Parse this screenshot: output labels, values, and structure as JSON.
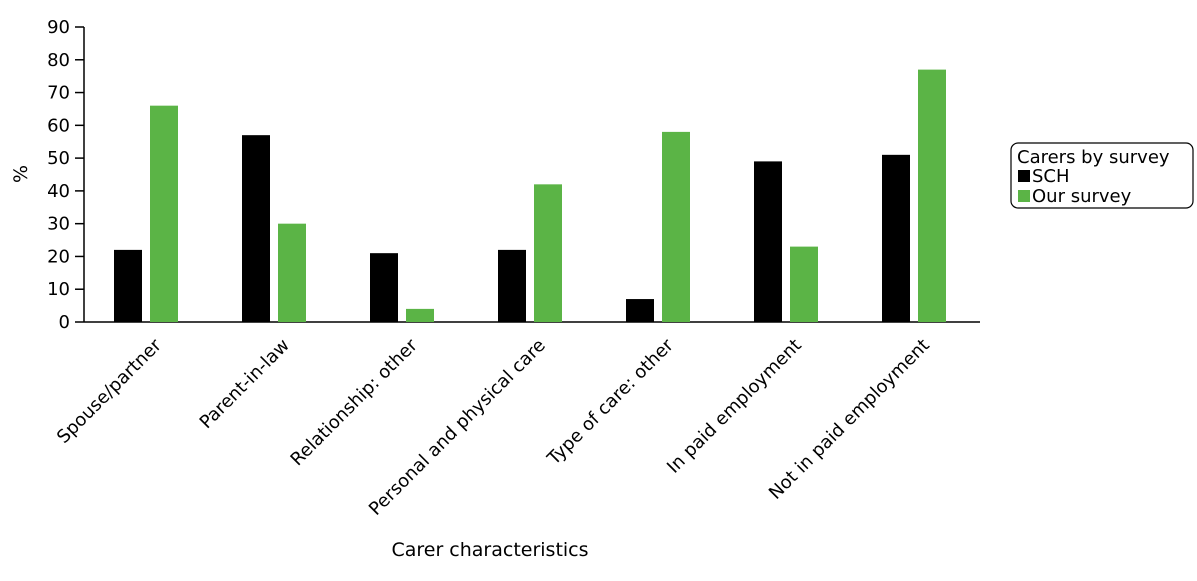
{
  "chart_data": {
    "type": "bar",
    "title": "",
    "xlabel": "Carer characteristics",
    "ylabel": "%",
    "ylim": [
      0,
      90
    ],
    "yticks": [
      0,
      10,
      20,
      30,
      40,
      50,
      60,
      70,
      80,
      90
    ],
    "grid": false,
    "legend_position": "right",
    "categories": [
      "Spouse/partner",
      "Parent-in-law",
      "Relationship: other",
      "Personal and physical care",
      "Type of care: other",
      "In paid employment",
      "Not in paid employment"
    ],
    "legend": {
      "title": "Carers by survey"
    },
    "series": [
      {
        "name": "SCH",
        "color": "#000000",
        "values": [
          22,
          57,
          21,
          22,
          7,
          49,
          51
        ]
      },
      {
        "name": "Our survey",
        "color": "#5bb446",
        "values": [
          66,
          30,
          4,
          42,
          58,
          23,
          77
        ]
      }
    ]
  }
}
